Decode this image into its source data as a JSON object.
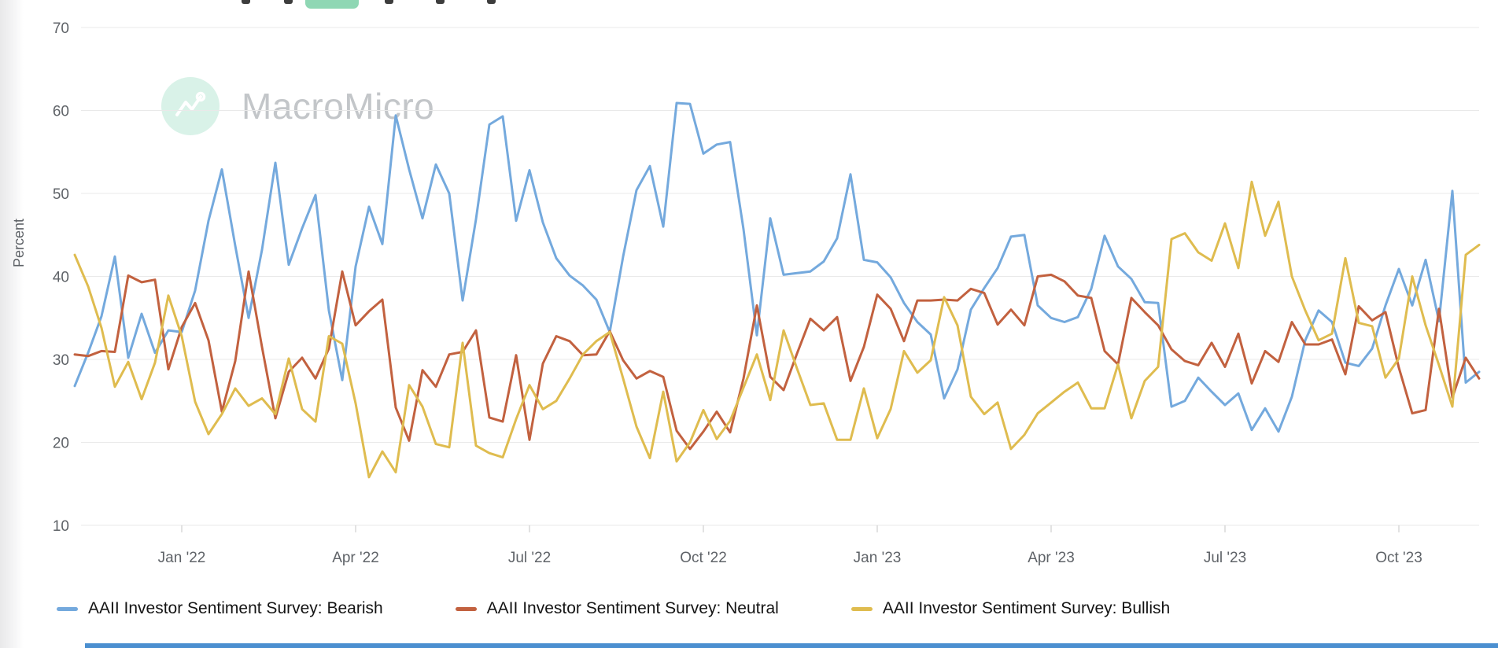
{
  "watermark": {
    "brand": "MacroMicro"
  },
  "toolbar": {
    "selected_range_color": "#8fd7b4",
    "fragment_color": "#3d3d3d"
  },
  "legend": {
    "items": [
      {
        "label": "AAII Investor Sentiment Survey: Bearish",
        "color": "#74a9dd"
      },
      {
        "label": "AAII Investor Sentiment Survey: Neutral",
        "color": "#c2613f"
      },
      {
        "label": "AAII Investor Sentiment Survey: Bullish",
        "color": "#dfbc4f"
      }
    ]
  },
  "chart_data": {
    "type": "line",
    "title": "",
    "xlabel": "",
    "ylabel": "Percent",
    "ylim": [
      10,
      70
    ],
    "y_ticks": [
      70,
      60,
      50,
      40,
      30,
      20,
      10
    ],
    "grid": "horizontal",
    "legend_position": "bottom",
    "x_unit": "weekly observations, Nov 2021 - Nov 2023",
    "x_tick_labels": [
      "Jan '22",
      "Apr '22",
      "Jul '22",
      "Oct '22",
      "Jan '23",
      "Apr '23",
      "Jul '23",
      "Oct '23"
    ],
    "x_tick_week_indices": [
      8,
      21,
      34,
      47,
      60,
      73,
      86,
      99
    ],
    "series": [
      {
        "name": "AAII Investor Sentiment Survey: Bearish",
        "color": "#74a9dd",
        "values": [
          26.8,
          30.8,
          35.2,
          42.4,
          30.2,
          35.5,
          30.8,
          33.5,
          33.3,
          38.3,
          46.7,
          52.9,
          43.7,
          35.0,
          43.2,
          53.7,
          41.4,
          45.8,
          49.8,
          35.9,
          27.5,
          41.2,
          48.4,
          43.9,
          59.4,
          52.9,
          47.0,
          53.5,
          50.0,
          37.1,
          46.9,
          58.3,
          59.3,
          46.7,
          52.8,
          46.5,
          42.2,
          40.1,
          38.9,
          37.2,
          33.3,
          42.4,
          50.4,
          53.3,
          46.0,
          60.9,
          60.8,
          54.8,
          55.9,
          56.2,
          45.7,
          32.9,
          47.0,
          40.2,
          40.4,
          40.6,
          41.8,
          44.6,
          52.3,
          42.0,
          41.7,
          39.9,
          36.8,
          34.5,
          33.0,
          25.3,
          28.8,
          36.0,
          38.6,
          41.0,
          44.8,
          45.0,
          36.5,
          35.0,
          34.5,
          35.1,
          38.5,
          44.9,
          41.2,
          39.7,
          36.9,
          36.8,
          24.3,
          25.0,
          27.8,
          26.1,
          24.5,
          25.9,
          21.5,
          24.1,
          21.3,
          25.5,
          32.3,
          35.9,
          34.5,
          29.6,
          29.2,
          31.3,
          36.5,
          40.9,
          36.5,
          42.0,
          34.6,
          50.3,
          27.2,
          28.5
        ]
      },
      {
        "name": "AAII Investor Sentiment Survey: Neutral",
        "color": "#c2613f",
        "values": [
          30.6,
          30.4,
          31.0,
          30.9,
          40.1,
          39.3,
          39.6,
          28.8,
          33.9,
          36.8,
          32.3,
          23.7,
          29.8,
          40.6,
          31.5,
          22.9,
          28.5,
          30.2,
          27.7,
          31.3,
          40.6,
          34.1,
          35.8,
          37.2,
          24.2,
          20.2,
          28.7,
          26.7,
          30.6,
          30.9,
          33.5,
          23.0,
          22.5,
          30.5,
          20.3,
          29.5,
          32.8,
          32.2,
          30.5,
          30.6,
          33.4,
          29.9,
          27.7,
          28.6,
          27.9,
          21.4,
          19.2,
          21.3,
          23.7,
          21.2,
          27.7,
          36.5,
          27.9,
          26.3,
          30.7,
          34.9,
          33.5,
          35.1,
          27.4,
          31.5,
          37.8,
          36.1,
          32.2,
          37.1,
          37.1,
          37.2,
          37.1,
          38.5,
          38.0,
          34.2,
          36.0,
          34.1,
          40.0,
          40.2,
          39.4,
          37.7,
          37.4,
          31.0,
          29.4,
          37.4,
          35.7,
          34.1,
          31.2,
          29.8,
          29.3,
          32.0,
          29.1,
          33.1,
          27.1,
          31.0,
          29.7,
          34.5,
          31.8,
          31.8,
          32.4,
          28.2,
          36.4,
          34.7,
          35.7,
          29.0,
          23.5,
          23.9,
          36.1,
          25.4,
          30.2,
          27.7
        ]
      },
      {
        "name": "AAII Investor Sentiment Survey: Bullish",
        "color": "#dfbc4f",
        "values": [
          42.6,
          38.8,
          33.8,
          26.7,
          29.7,
          25.2,
          29.6,
          37.7,
          32.8,
          24.9,
          21.0,
          23.4,
          26.5,
          24.4,
          25.3,
          23.4,
          30.1,
          24.0,
          22.5,
          32.8,
          31.9,
          24.7,
          15.8,
          18.9,
          16.4,
          26.9,
          24.3,
          19.8,
          19.4,
          32.0,
          19.6,
          18.7,
          18.2,
          22.8,
          26.9,
          24.0,
          25.0,
          27.7,
          30.6,
          32.2,
          33.3,
          27.7,
          21.9,
          18.1,
          26.1,
          17.7,
          20.0,
          23.9,
          20.4,
          22.6,
          26.6,
          30.6,
          25.1,
          33.5,
          28.9,
          24.5,
          24.7,
          20.3,
          20.3,
          26.5,
          20.5,
          24.0,
          31.0,
          28.4,
          29.9,
          37.5,
          34.1,
          25.5,
          23.4,
          24.8,
          19.2,
          20.9,
          23.5,
          24.8,
          26.1,
          27.2,
          24.1,
          24.1,
          29.4,
          22.9,
          27.4,
          29.1,
          44.5,
          45.2,
          42.9,
          41.9,
          46.4,
          41.0,
          51.4,
          44.9,
          49.0,
          40.0,
          35.9,
          32.3,
          33.1,
          42.2,
          34.4,
          34.0,
          27.8,
          30.1,
          40.0,
          34.1,
          29.3,
          24.3,
          42.6,
          43.8
        ]
      }
    ],
    "style": {
      "grid_color": "#e9e9e9",
      "tick_color": "#d8d8d8",
      "axis_text_color": "#5f6368",
      "line_width": 3
    }
  }
}
